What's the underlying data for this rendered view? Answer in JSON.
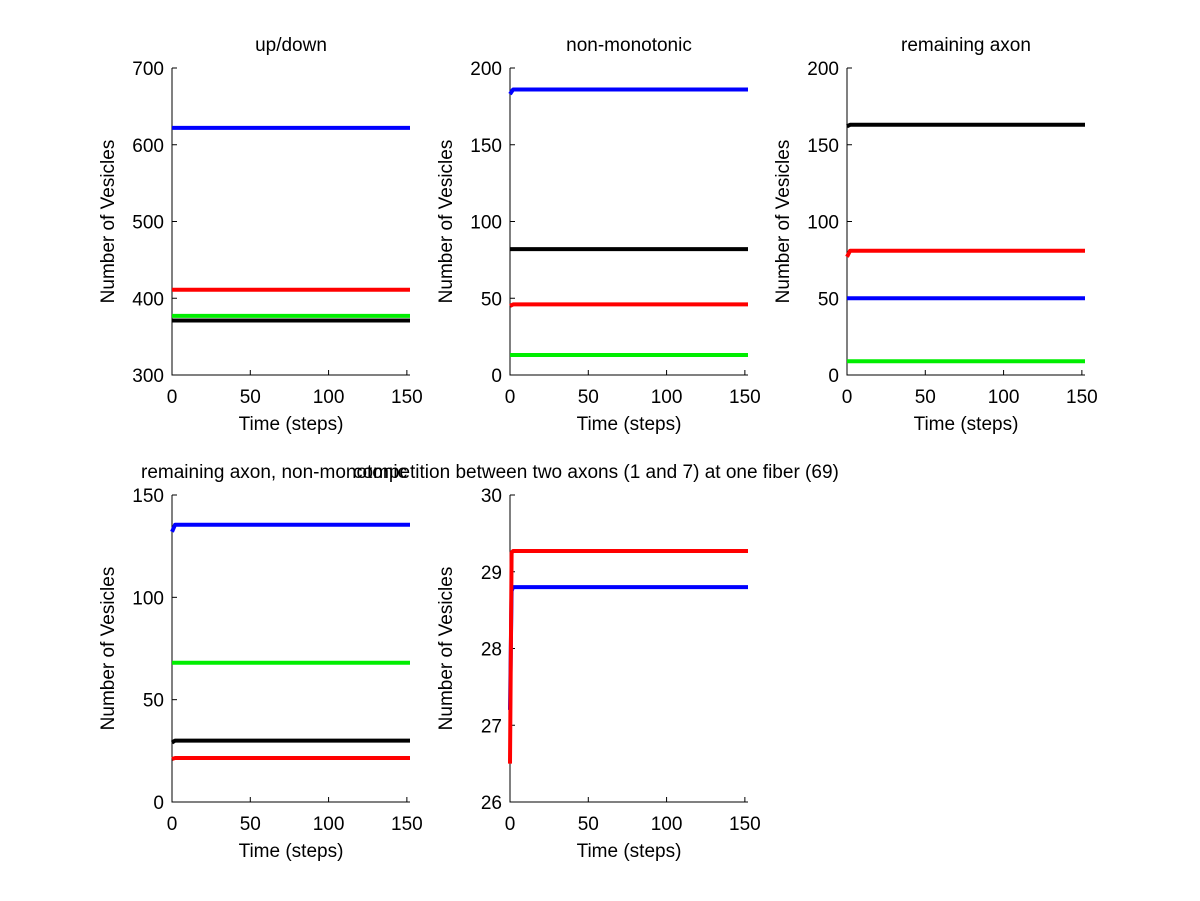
{
  "chart_data": [
    {
      "type": "line",
      "title": "up/down",
      "xlabel": "Time (steps)",
      "ylabel": "Number of Vesicles",
      "xlim": [
        0,
        152
      ],
      "ylim": [
        300,
        700
      ],
      "xticks": [
        0,
        50,
        100,
        150
      ],
      "yticks": [
        300,
        400,
        500,
        600,
        700
      ],
      "series": [
        {
          "name": "blue",
          "color": "#0000ff",
          "x": [
            0,
            2,
            152
          ],
          "y": [
            622,
            622,
            622
          ]
        },
        {
          "name": "red",
          "color": "#ff0000",
          "x": [
            0,
            2,
            152
          ],
          "y": [
            411,
            411,
            411
          ]
        },
        {
          "name": "green",
          "color": "#00ee00",
          "x": [
            0,
            2,
            152
          ],
          "y": [
            377,
            377,
            377
          ]
        },
        {
          "name": "black",
          "color": "#000000",
          "x": [
            0,
            2,
            152
          ],
          "y": [
            371,
            371,
            371
          ]
        }
      ]
    },
    {
      "type": "line",
      "title": "non-monotonic",
      "xlabel": "Time (steps)",
      "ylabel": "Number of Vesicles",
      "xlim": [
        0,
        152
      ],
      "ylim": [
        0,
        200
      ],
      "xticks": [
        0,
        50,
        100,
        150
      ],
      "yticks": [
        0,
        50,
        100,
        150,
        200
      ],
      "series": [
        {
          "name": "blue",
          "color": "#0000ff",
          "x": [
            0,
            2,
            152
          ],
          "y": [
            183,
            186,
            186
          ]
        },
        {
          "name": "black",
          "color": "#000000",
          "x": [
            0,
            2,
            152
          ],
          "y": [
            82,
            82,
            82
          ]
        },
        {
          "name": "red",
          "color": "#ff0000",
          "x": [
            0,
            2,
            152
          ],
          "y": [
            45,
            46,
            46
          ]
        },
        {
          "name": "green",
          "color": "#00ee00",
          "x": [
            0,
            2,
            152
          ],
          "y": [
            13,
            13,
            13
          ]
        }
      ]
    },
    {
      "type": "line",
      "title": "remaining axon",
      "xlabel": "Time (steps)",
      "ylabel": "Number of Vesicles",
      "xlim": [
        0,
        152
      ],
      "ylim": [
        0,
        200
      ],
      "xticks": [
        0,
        50,
        100,
        150
      ],
      "yticks": [
        0,
        50,
        100,
        150,
        200
      ],
      "series": [
        {
          "name": "black",
          "color": "#000000",
          "x": [
            0,
            2,
            152
          ],
          "y": [
            162,
            163,
            163
          ]
        },
        {
          "name": "red",
          "color": "#ff0000",
          "x": [
            0,
            2,
            152
          ],
          "y": [
            77,
            81,
            81
          ]
        },
        {
          "name": "blue",
          "color": "#0000ff",
          "x": [
            0,
            2,
            152
          ],
          "y": [
            50,
            50,
            50
          ]
        },
        {
          "name": "green",
          "color": "#00ee00",
          "x": [
            0,
            2,
            152
          ],
          "y": [
            9,
            9,
            9
          ]
        }
      ]
    },
    {
      "type": "line",
      "title": "remaining axon, non-monotonic",
      "xlabel": "Time (steps)",
      "ylabel": "Number of Vesicles",
      "xlim": [
        0,
        152
      ],
      "ylim": [
        0,
        150
      ],
      "xticks": [
        0,
        50,
        100,
        150
      ],
      "yticks": [
        0,
        50,
        100,
        150
      ],
      "series": [
        {
          "name": "blue",
          "color": "#0000ff",
          "x": [
            0,
            2,
            152
          ],
          "y": [
            132,
            135.5,
            135.5
          ]
        },
        {
          "name": "green",
          "color": "#00ee00",
          "x": [
            0,
            2,
            152
          ],
          "y": [
            68,
            68,
            68
          ]
        },
        {
          "name": "black",
          "color": "#000000",
          "x": [
            0,
            2,
            152
          ],
          "y": [
            29,
            30,
            30
          ]
        },
        {
          "name": "red",
          "color": "#ff0000",
          "x": [
            0,
            2,
            152
          ],
          "y": [
            21,
            21.5,
            21.5
          ]
        }
      ]
    },
    {
      "type": "line",
      "title": "competition between two axons (1 and 7) at one fiber (69)",
      "xlabel": "Time (steps)",
      "ylabel": "Number of Vesicles",
      "xlim": [
        0,
        152
      ],
      "ylim": [
        26,
        30
      ],
      "xticks": [
        0,
        50,
        100,
        150
      ],
      "yticks": [
        26,
        27,
        28,
        29,
        30
      ],
      "series": [
        {
          "name": "blue",
          "color": "#0000ff",
          "x": [
            0,
            1,
            2,
            152
          ],
          "y": [
            27.2,
            28.75,
            28.8,
            28.8
          ]
        },
        {
          "name": "red",
          "color": "#ff0000",
          "x": [
            0,
            1,
            2,
            152
          ],
          "y": [
            26.5,
            29.25,
            29.27,
            29.27
          ]
        }
      ]
    }
  ]
}
